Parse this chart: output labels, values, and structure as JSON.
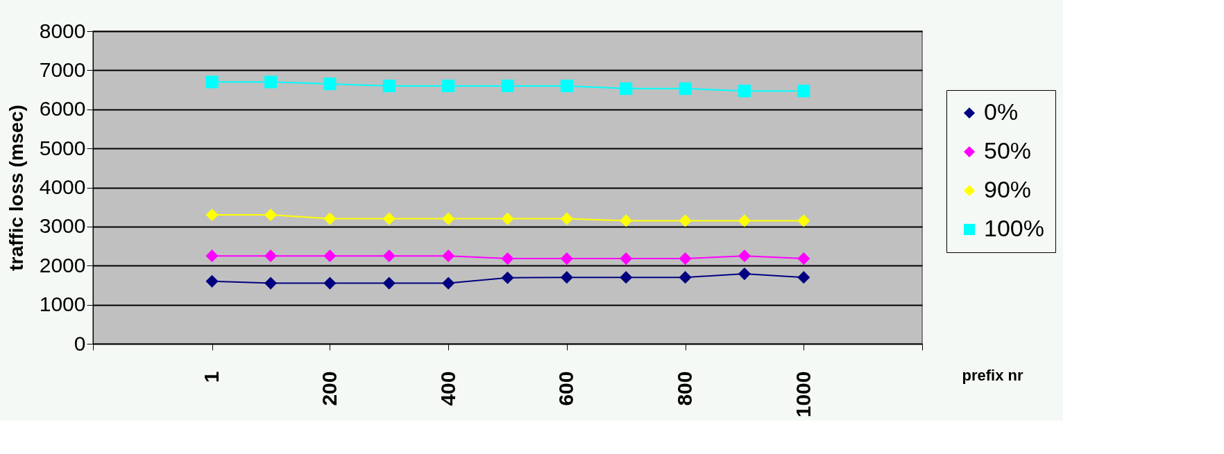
{
  "chart_data": {
    "type": "line",
    "xlabel": "prefix nr",
    "ylabel": "traffic loss (msec)",
    "x": [
      1,
      100,
      200,
      300,
      400,
      500,
      600,
      700,
      800,
      900,
      1000
    ],
    "series": [
      {
        "name": "0%",
        "color": "#000080",
        "marker": "diamond",
        "values": [
          1600,
          1550,
          1550,
          1550,
          1550,
          1690,
          1700,
          1700,
          1700,
          1790,
          1700
        ]
      },
      {
        "name": "50%",
        "color": "#ff00ff",
        "marker": "diamond",
        "values": [
          2250,
          2250,
          2250,
          2250,
          2250,
          2180,
          2180,
          2180,
          2180,
          2250,
          2180
        ]
      },
      {
        "name": "90%",
        "color": "#ffff00",
        "marker": "diamond",
        "values": [
          3300,
          3300,
          3200,
          3200,
          3200,
          3200,
          3200,
          3150,
          3150,
          3150,
          3150
        ]
      },
      {
        "name": "100%",
        "color": "#00ffff",
        "marker": "square",
        "values": [
          6700,
          6700,
          6650,
          6600,
          6600,
          6600,
          6600,
          6530,
          6530,
          6470,
          6470
        ]
      }
    ],
    "xlim": [
      -200,
      1200
    ],
    "xticks": [
      {
        "value": -200,
        "label": null
      },
      1,
      200,
      400,
      600,
      800,
      1000,
      {
        "value": 1200,
        "label": null
      }
    ],
    "ylim": [
      0,
      8000
    ],
    "yticks": [
      0,
      1000,
      2000,
      3000,
      4000,
      5000,
      6000,
      7000,
      8000
    ],
    "grid": "y",
    "legend": "right"
  }
}
